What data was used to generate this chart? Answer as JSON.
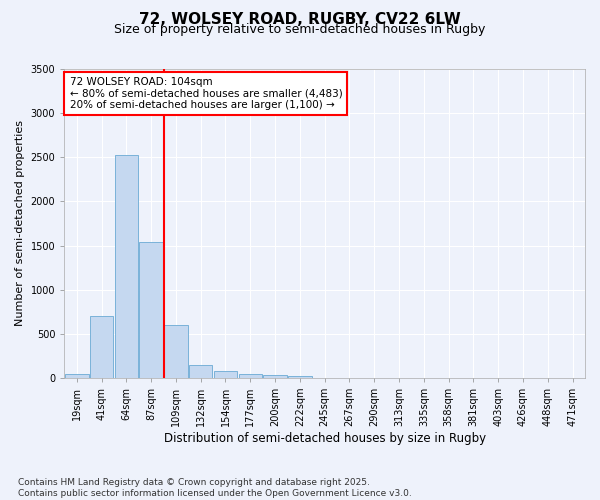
{
  "title": "72, WOLSEY ROAD, RUGBY, CV22 6LW",
  "subtitle": "Size of property relative to semi-detached houses in Rugby",
  "xlabel": "Distribution of semi-detached houses by size in Rugby",
  "ylabel": "Number of semi-detached properties",
  "bins": [
    "19sqm",
    "41sqm",
    "64sqm",
    "87sqm",
    "109sqm",
    "132sqm",
    "154sqm",
    "177sqm",
    "200sqm",
    "222sqm",
    "245sqm",
    "267sqm",
    "290sqm",
    "313sqm",
    "335sqm",
    "358sqm",
    "381sqm",
    "403sqm",
    "426sqm",
    "448sqm",
    "471sqm"
  ],
  "bar_values": [
    50,
    700,
    2530,
    1540,
    600,
    150,
    75,
    50,
    30,
    20,
    0,
    0,
    0,
    0,
    0,
    0,
    0,
    0,
    0,
    0
  ],
  "bar_color": "#c5d8f0",
  "bar_edge_color": "#6aaad4",
  "vline_color": "red",
  "vline_x": 3.5,
  "annotation_line1": "72 WOLSEY ROAD: 104sqm",
  "annotation_line2": "← 80% of semi-detached houses are smaller (4,483)",
  "annotation_line3": "20% of semi-detached houses are larger (1,100) →",
  "annotation_box_color": "red",
  "annotation_box_fill": "white",
  "ylim": [
    0,
    3500
  ],
  "background_color": "#eef2fb",
  "grid_color": "#ffffff",
  "footnote": "Contains HM Land Registry data © Crown copyright and database right 2025.\nContains public sector information licensed under the Open Government Licence v3.0.",
  "title_fontsize": 11,
  "subtitle_fontsize": 9,
  "ylabel_fontsize": 8,
  "xlabel_fontsize": 8.5,
  "tick_fontsize": 7,
  "annotation_fontsize": 7.5,
  "footnote_fontsize": 6.5,
  "font_family": "DejaVu Sans"
}
